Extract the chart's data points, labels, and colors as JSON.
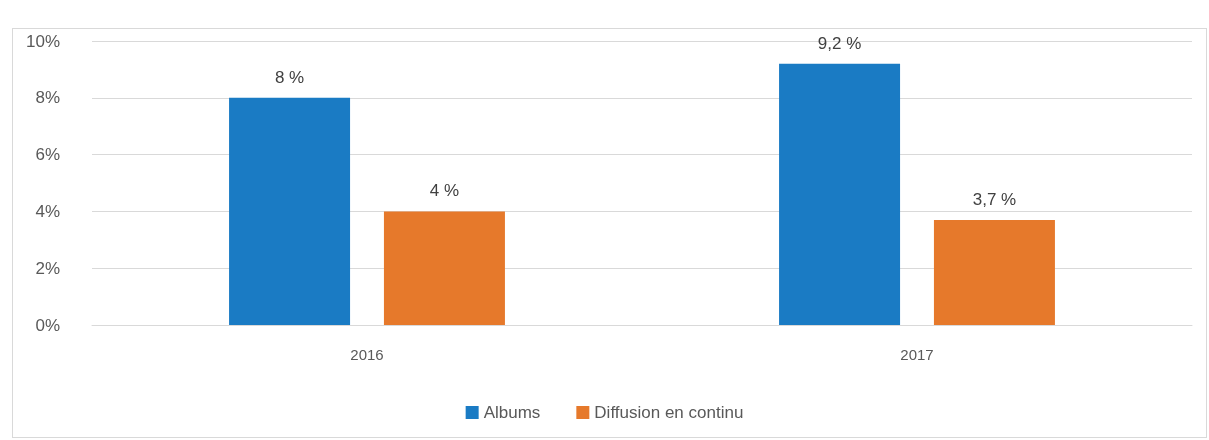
{
  "chart_data": {
    "type": "bar",
    "categories": [
      "2016",
      "2017"
    ],
    "series": [
      {
        "name": "Albums",
        "color": "#1a7bc4",
        "values": [
          8,
          9.2
        ],
        "value_labels": [
          "8 %",
          "9,2 %"
        ]
      },
      {
        "name": "Diffusion en continu",
        "color": "#e6792b",
        "values": [
          4,
          3.7
        ],
        "value_labels": [
          "4 %",
          "3,7 %"
        ]
      }
    ],
    "ylim": [
      0,
      10
    ],
    "yticks": [
      {
        "value": 0,
        "label": "0%"
      },
      {
        "value": 2,
        "label": "2%"
      },
      {
        "value": 4,
        "label": "4%"
      },
      {
        "value": 6,
        "label": "6%"
      },
      {
        "value": 8,
        "label": "8%"
      },
      {
        "value": 10,
        "label": "10%"
      }
    ],
    "grid": "y",
    "legend": "bottom"
  }
}
